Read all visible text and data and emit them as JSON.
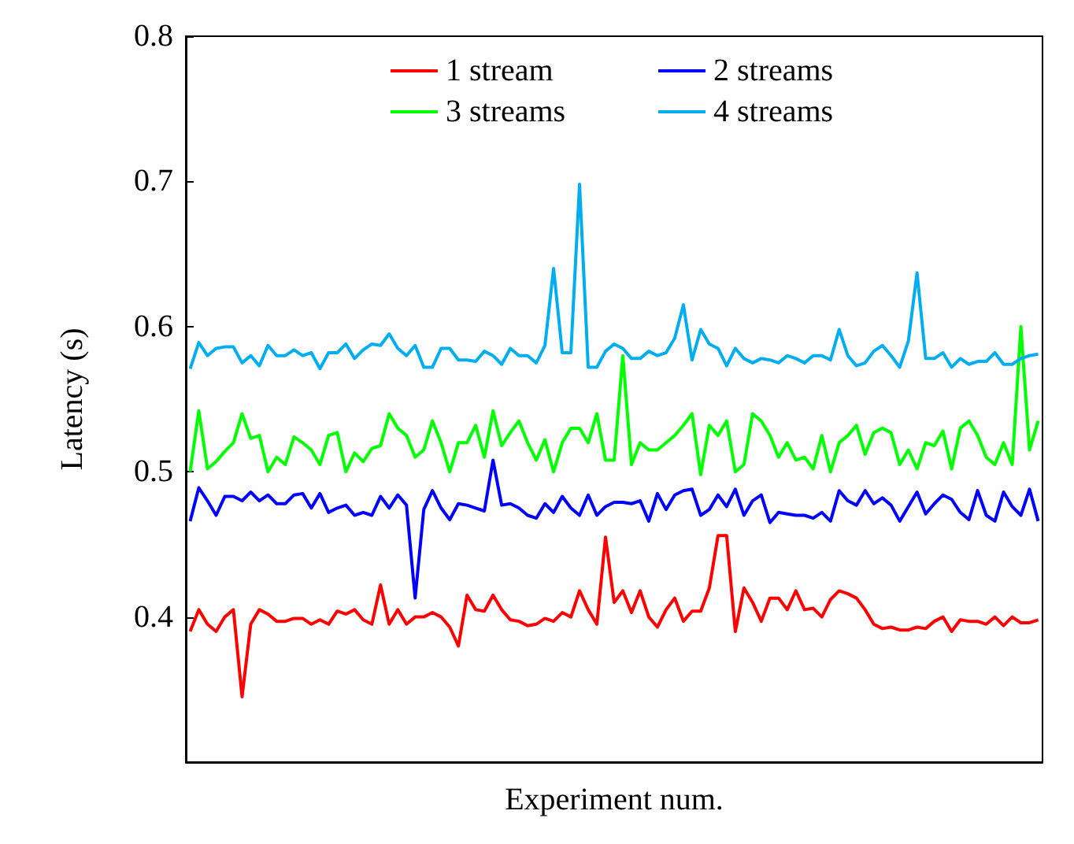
{
  "chart_data": {
    "type": "line",
    "xlabel": "Experiment num.",
    "ylabel": "Latency (s)",
    "categories": [
      null,
      null,
      null,
      null,
      null,
      null,
      null,
      null,
      null,
      null,
      null,
      null,
      null,
      null,
      null,
      null,
      null,
      null,
      null,
      null,
      null,
      null,
      null,
      null,
      null,
      null,
      null,
      null,
      null,
      null,
      null,
      null,
      null,
      null,
      null,
      null,
      null,
      null,
      null,
      null,
      null,
      null,
      null,
      null,
      null,
      null,
      null,
      null,
      null,
      null,
      null,
      null,
      null,
      null,
      null,
      null,
      null,
      null,
      null,
      null,
      null,
      null,
      null,
      null,
      null,
      null,
      null,
      null,
      null,
      null,
      null,
      null,
      null,
      null,
      null,
      null,
      null,
      null,
      null,
      null,
      null,
      null,
      null,
      null,
      null,
      null,
      null,
      null,
      null,
      null,
      null,
      null,
      null,
      null,
      null,
      null,
      null,
      null,
      null
    ],
    "series": [
      {
        "name": "1 stream",
        "color": "#ff0000",
        "values": [
          0.39,
          0.405,
          0.395,
          0.39,
          0.4,
          0.405,
          0.345,
          0.395,
          0.405,
          0.402,
          0.397,
          0.397,
          0.399,
          0.399,
          0.395,
          0.398,
          0.395,
          0.404,
          0.402,
          0.405,
          0.398,
          0.395,
          0.422,
          0.395,
          0.405,
          0.395,
          0.4,
          0.4,
          0.403,
          0.4,
          0.393,
          0.38,
          0.415,
          0.405,
          0.404,
          0.415,
          0.405,
          0.398,
          0.397,
          0.394,
          0.395,
          0.399,
          0.397,
          0.403,
          0.4,
          0.418,
          0.405,
          0.395,
          0.455,
          0.41,
          0.418,
          0.403,
          0.418,
          0.4,
          0.393,
          0.405,
          0.413,
          0.397,
          0.404,
          0.404,
          0.42,
          0.456,
          0.456,
          0.39,
          0.42,
          0.41,
          0.397,
          0.413,
          0.413,
          0.405,
          0.418,
          0.405,
          0.406,
          0.4,
          0.412,
          0.418,
          0.416,
          0.413,
          0.405,
          0.395,
          0.392,
          0.393,
          0.391,
          0.391,
          0.393,
          0.392,
          0.397,
          0.4,
          0.39,
          0.398,
          0.397,
          0.397,
          0.395,
          0.4,
          0.394,
          0.4,
          0.396,
          0.396,
          0.398
        ]
      },
      {
        "name": "2 streams",
        "color": "#0000ff",
        "values": [
          0.466,
          0.489,
          0.48,
          0.47,
          0.483,
          0.483,
          0.48,
          0.486,
          0.48,
          0.484,
          0.478,
          0.478,
          0.484,
          0.485,
          0.475,
          0.485,
          0.472,
          0.475,
          0.477,
          0.47,
          0.472,
          0.47,
          0.483,
          0.475,
          0.484,
          0.477,
          0.413,
          0.474,
          0.487,
          0.475,
          0.467,
          0.478,
          0.477,
          0.475,
          0.473,
          0.508,
          0.477,
          0.478,
          0.475,
          0.47,
          0.468,
          0.478,
          0.472,
          0.483,
          0.475,
          0.47,
          0.484,
          0.47,
          0.476,
          0.479,
          0.479,
          0.478,
          0.48,
          0.466,
          0.485,
          0.474,
          0.484,
          0.487,
          0.488,
          0.47,
          0.474,
          0.484,
          0.476,
          0.488,
          0.47,
          0.48,
          0.484,
          0.465,
          0.472,
          0.471,
          0.47,
          0.47,
          0.468,
          0.472,
          0.466,
          0.487,
          0.48,
          0.477,
          0.487,
          0.478,
          0.482,
          0.477,
          0.466,
          0.476,
          0.486,
          0.471,
          0.478,
          0.484,
          0.481,
          0.472,
          0.467,
          0.487,
          0.47,
          0.466,
          0.486,
          0.476,
          0.47,
          0.488,
          0.466
        ]
      },
      {
        "name": "3 streams",
        "color": "#00ff00",
        "values": [
          0.5,
          0.542,
          0.502,
          0.507,
          0.514,
          0.52,
          0.54,
          0.523,
          0.525,
          0.5,
          0.51,
          0.505,
          0.524,
          0.52,
          0.515,
          0.505,
          0.525,
          0.527,
          0.5,
          0.513,
          0.507,
          0.516,
          0.518,
          0.54,
          0.53,
          0.525,
          0.51,
          0.515,
          0.535,
          0.52,
          0.5,
          0.52,
          0.52,
          0.532,
          0.51,
          0.542,
          0.518,
          0.527,
          0.535,
          0.52,
          0.508,
          0.522,
          0.5,
          0.52,
          0.53,
          0.53,
          0.52,
          0.54,
          0.508,
          0.508,
          0.58,
          0.505,
          0.52,
          0.515,
          0.515,
          0.52,
          0.525,
          0.532,
          0.54,
          0.498,
          0.532,
          0.525,
          0.535,
          0.5,
          0.505,
          0.54,
          0.535,
          0.525,
          0.51,
          0.52,
          0.508,
          0.51,
          0.502,
          0.525,
          0.5,
          0.52,
          0.525,
          0.532,
          0.512,
          0.527,
          0.53,
          0.527,
          0.505,
          0.515,
          0.502,
          0.52,
          0.518,
          0.528,
          0.502,
          0.53,
          0.535,
          0.525,
          0.51,
          0.505,
          0.52,
          0.505,
          0.6,
          0.515,
          0.535
        ]
      },
      {
        "name": "4 streams",
        "color": "#00aeef",
        "values": [
          0.571,
          0.589,
          0.58,
          0.585,
          0.586,
          0.586,
          0.575,
          0.58,
          0.573,
          0.587,
          0.58,
          0.58,
          0.584,
          0.58,
          0.582,
          0.571,
          0.582,
          0.582,
          0.588,
          0.578,
          0.584,
          0.588,
          0.587,
          0.595,
          0.585,
          0.58,
          0.587,
          0.572,
          0.572,
          0.585,
          0.585,
          0.577,
          0.577,
          0.576,
          0.583,
          0.58,
          0.574,
          0.585,
          0.58,
          0.58,
          0.575,
          0.587,
          0.64,
          0.582,
          0.582,
          0.698,
          0.572,
          0.572,
          0.583,
          0.588,
          0.585,
          0.578,
          0.578,
          0.583,
          0.58,
          0.582,
          0.592,
          0.615,
          0.577,
          0.598,
          0.588,
          0.585,
          0.573,
          0.585,
          0.578,
          0.575,
          0.578,
          0.577,
          0.575,
          0.58,
          0.578,
          0.575,
          0.58,
          0.58,
          0.577,
          0.598,
          0.58,
          0.573,
          0.575,
          0.583,
          0.587,
          0.58,
          0.572,
          0.59,
          0.637,
          0.578,
          0.578,
          0.582,
          0.572,
          0.578,
          0.574,
          0.576,
          0.576,
          0.582,
          0.574,
          0.574,
          0.578,
          0.58,
          0.581
        ]
      }
    ],
    "ylim": [
      0.3,
      0.8
    ],
    "yticks": [
      0.4,
      0.5,
      0.6,
      0.7,
      0.8
    ],
    "legend": "top",
    "grid": false,
    "marker": "none",
    "line_style": "solid"
  }
}
